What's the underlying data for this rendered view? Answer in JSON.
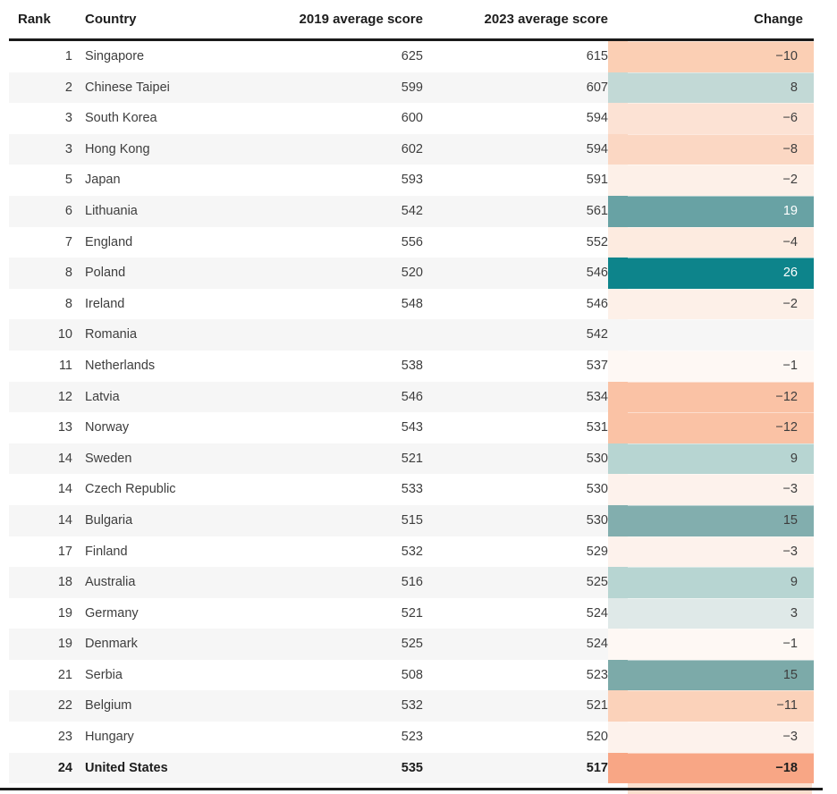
{
  "colors": {
    "rule": "#1a1a1a",
    "stripe": "#f6f6f6",
    "text": "#3e3e3e",
    "header_text": "#1d1d1d",
    "partial_orange": "#fbdfce"
  },
  "chart_data": {
    "type": "table",
    "columns": [
      {
        "key": "rank",
        "label": "Rank"
      },
      {
        "key": "country",
        "label": "Country"
      },
      {
        "key": "s2019",
        "label": "2019 average score"
      },
      {
        "key": "s2023",
        "label": "2023 average score"
      },
      {
        "key": "change",
        "label": "Change"
      }
    ],
    "rows": [
      {
        "rank": "1",
        "country": "Singapore",
        "s2019": "625",
        "s2023": "615",
        "change": "−10",
        "bg": "#fbcfb4",
        "fg": "#3e3e3e",
        "bold": false
      },
      {
        "rank": "2",
        "country": "Chinese Taipei",
        "s2019": "599",
        "s2023": "607",
        "change": "8",
        "bg": "#c2d9d6",
        "fg": "#3e3e3e",
        "bold": false
      },
      {
        "rank": "3",
        "country": "South Korea",
        "s2019": "600",
        "s2023": "594",
        "change": "−6",
        "bg": "#fce2d4",
        "fg": "#3e3e3e",
        "bold": false
      },
      {
        "rank": "3",
        "country": "Hong Kong",
        "s2019": "602",
        "s2023": "594",
        "change": "−8",
        "bg": "#fbd7c3",
        "fg": "#3e3e3e",
        "bold": false
      },
      {
        "rank": "5",
        "country": "Japan",
        "s2019": "593",
        "s2023": "591",
        "change": "−2",
        "bg": "#fdf0e8",
        "fg": "#3e3e3e",
        "bold": false
      },
      {
        "rank": "6",
        "country": "Lithuania",
        "s2019": "542",
        "s2023": "561",
        "change": "19",
        "bg": "#68a2a4",
        "fg": "#ffffff",
        "bold": false
      },
      {
        "rank": "7",
        "country": "England",
        "s2019": "556",
        "s2023": "552",
        "change": "−4",
        "bg": "#fdebe0",
        "fg": "#3e3e3e",
        "bold": false
      },
      {
        "rank": "8",
        "country": "Poland",
        "s2019": "520",
        "s2023": "546",
        "change": "26",
        "bg": "#0d848b",
        "fg": "#ffffff",
        "bold": false
      },
      {
        "rank": "8",
        "country": "Ireland",
        "s2019": "548",
        "s2023": "546",
        "change": "−2",
        "bg": "#fdf0e8",
        "fg": "#3e3e3e",
        "bold": false
      },
      {
        "rank": "10",
        "country": "Romania",
        "s2019": "",
        "s2023": "542",
        "change": "",
        "bg": "",
        "fg": "#3e3e3e",
        "bold": false
      },
      {
        "rank": "11",
        "country": "Netherlands",
        "s2019": "538",
        "s2023": "537",
        "change": "−1",
        "bg": "#fef8f4",
        "fg": "#3e3e3e",
        "bold": false
      },
      {
        "rank": "12",
        "country": "Latvia",
        "s2019": "546",
        "s2023": "534",
        "change": "−12",
        "bg": "#fac2a5",
        "fg": "#3e3e3e",
        "bold": false
      },
      {
        "rank": "13",
        "country": "Norway",
        "s2019": "543",
        "s2023": "531",
        "change": "−12",
        "bg": "#fac2a5",
        "fg": "#3e3e3e",
        "bold": false
      },
      {
        "rank": "14",
        "country": "Sweden",
        "s2019": "521",
        "s2023": "530",
        "change": "9",
        "bg": "#b7d5d2",
        "fg": "#3e3e3e",
        "bold": false
      },
      {
        "rank": "14",
        "country": "Czech Republic",
        "s2019": "533",
        "s2023": "530",
        "change": "−3",
        "bg": "#fdf2ec",
        "fg": "#3e3e3e",
        "bold": false
      },
      {
        "rank": "14",
        "country": "Bulgaria",
        "s2019": "515",
        "s2023": "530",
        "change": "15",
        "bg": "#82aeae",
        "fg": "#3e3e3e",
        "bold": false
      },
      {
        "rank": "17",
        "country": "Finland",
        "s2019": "532",
        "s2023": "529",
        "change": "−3",
        "bg": "#fdf2ec",
        "fg": "#3e3e3e",
        "bold": false
      },
      {
        "rank": "18",
        "country": "Australia",
        "s2019": "516",
        "s2023": "525",
        "change": "9",
        "bg": "#b7d5d2",
        "fg": "#3e3e3e",
        "bold": false
      },
      {
        "rank": "19",
        "country": "Germany",
        "s2019": "521",
        "s2023": "524",
        "change": "3",
        "bg": "#dfe9e8",
        "fg": "#3e3e3e",
        "bold": false
      },
      {
        "rank": "19",
        "country": "Denmark",
        "s2019": "525",
        "s2023": "524",
        "change": "−1",
        "bg": "#fef8f4",
        "fg": "#3e3e3e",
        "bold": false
      },
      {
        "rank": "21",
        "country": "Serbia",
        "s2019": "508",
        "s2023": "523",
        "change": "15",
        "bg": "#7caaa9",
        "fg": "#3e3e3e",
        "bold": false
      },
      {
        "rank": "22",
        "country": "Belgium",
        "s2019": "532",
        "s2023": "521",
        "change": "−11",
        "bg": "#fbd2ba",
        "fg": "#3e3e3e",
        "bold": false
      },
      {
        "rank": "23",
        "country": "Hungary",
        "s2019": "523",
        "s2023": "520",
        "change": "−3",
        "bg": "#fdf2ec",
        "fg": "#3e3e3e",
        "bold": false
      },
      {
        "rank": "24",
        "country": "United States",
        "s2019": "535",
        "s2023": "517",
        "change": "−18",
        "bg": "#f8a685",
        "fg": "#1d1d1d",
        "bold": true
      }
    ]
  }
}
